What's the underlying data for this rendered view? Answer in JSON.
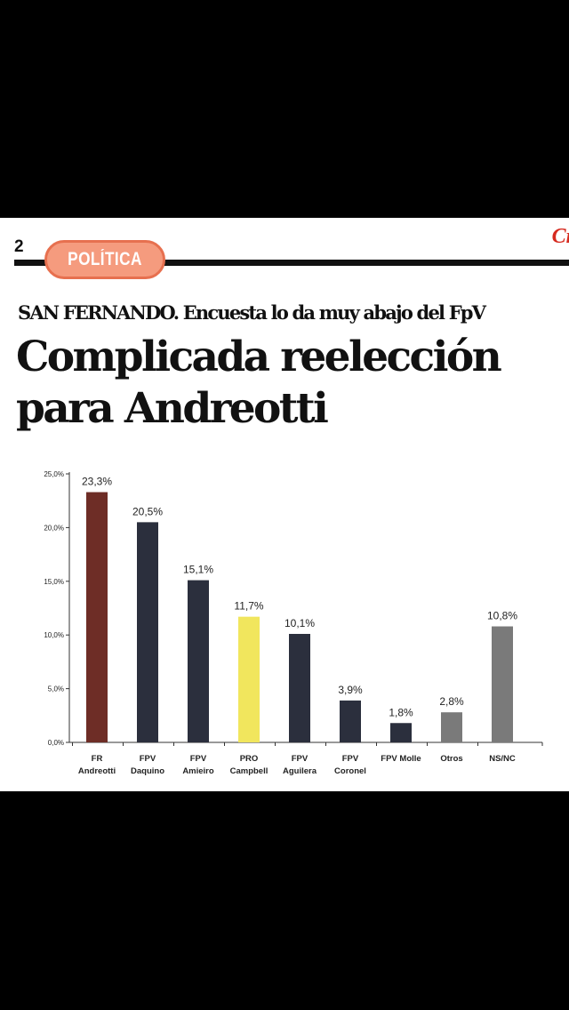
{
  "page": {
    "number": "2",
    "section": "POLÍTICA",
    "brand": "Cr",
    "kicker": "SAN FERNANDO. Encuesta lo da muy abajo del FpV",
    "headline_line1": "Complicada reelección",
    "headline_line2": "para Andreotti"
  },
  "chart_data": {
    "type": "bar",
    "categories": [
      [
        "FR",
        "Andreotti"
      ],
      [
        "FPV",
        "Daquino"
      ],
      [
        "FPV",
        "Amieiro"
      ],
      [
        "PRO",
        "Campbell"
      ],
      [
        "FPV",
        "Aguilera"
      ],
      [
        "FPV",
        "Coronel"
      ],
      [
        "FPV Molle"
      ],
      [
        "Otros"
      ],
      [
        "NS/NC"
      ]
    ],
    "values": [
      23.3,
      20.5,
      15.1,
      11.7,
      10.1,
      3.9,
      1.8,
      2.8,
      10.8
    ],
    "value_labels": [
      "23,3%",
      "20,5%",
      "15,1%",
      "11,7%",
      "10,1%",
      "3,9%",
      "1,8%",
      "2,8%",
      "10,8%"
    ],
    "colors": [
      "#6e2d26",
      "#2b2f3d",
      "#2b2f3d",
      "#f1e65d",
      "#2b2f3d",
      "#2b2f3d",
      "#2b2f3d",
      "#7a7a7a",
      "#7a7a7a"
    ],
    "ylim": [
      0,
      25
    ],
    "yticks": [
      0,
      5,
      10,
      15,
      20,
      25
    ],
    "ytick_labels": [
      "0,0%",
      "5,0%",
      "10,0%",
      "15,0%",
      "20,0%",
      "25,0%"
    ],
    "grid": false,
    "title": "",
    "xlabel": "",
    "ylabel": ""
  }
}
